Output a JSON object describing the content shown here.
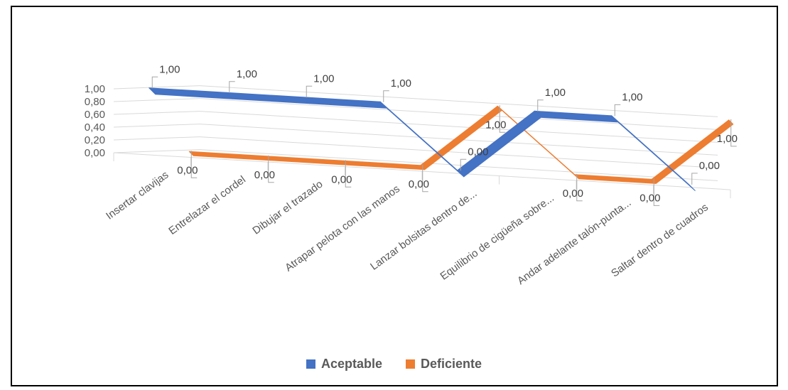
{
  "chart_data": {
    "type": "line",
    "title": "",
    "xlabel": "",
    "ylabel": "",
    "ylim": [
      0,
      1
    ],
    "y_ticks": [
      "0,00",
      "0,20",
      "0,40",
      "0,60",
      "0,80",
      "1,00"
    ],
    "categories": [
      "Insertar clavijas",
      "Entrelazar el cordel",
      "Dibujar el trazado",
      "Atrapar pelota con las manos",
      "Lanzar bolsitas dentro de...",
      "Equilibrio de cigüeña sobre...",
      "Andar adelante talón-punta...",
      "Saltar dentro de cuadros"
    ],
    "series": [
      {
        "name": "Aceptable",
        "color": "#4472C4",
        "values": [
          1,
          1,
          1,
          1,
          0,
          1,
          1,
          0
        ],
        "labels": [
          "1,00",
          "1,00",
          "1,00",
          "1,00",
          "0,00",
          "1,00",
          "1,00",
          "0,00"
        ]
      },
      {
        "name": "Deficiente",
        "color": "#ED7D31",
        "values": [
          0,
          0,
          0,
          0,
          1,
          0,
          0,
          1
        ],
        "labels": [
          "0,00",
          "0,00",
          "0,00",
          "0,00",
          "1,00",
          "0,00",
          "0,00",
          "1,00"
        ]
      }
    ],
    "grid": true,
    "legend": "bottom",
    "style": "3d-line"
  }
}
